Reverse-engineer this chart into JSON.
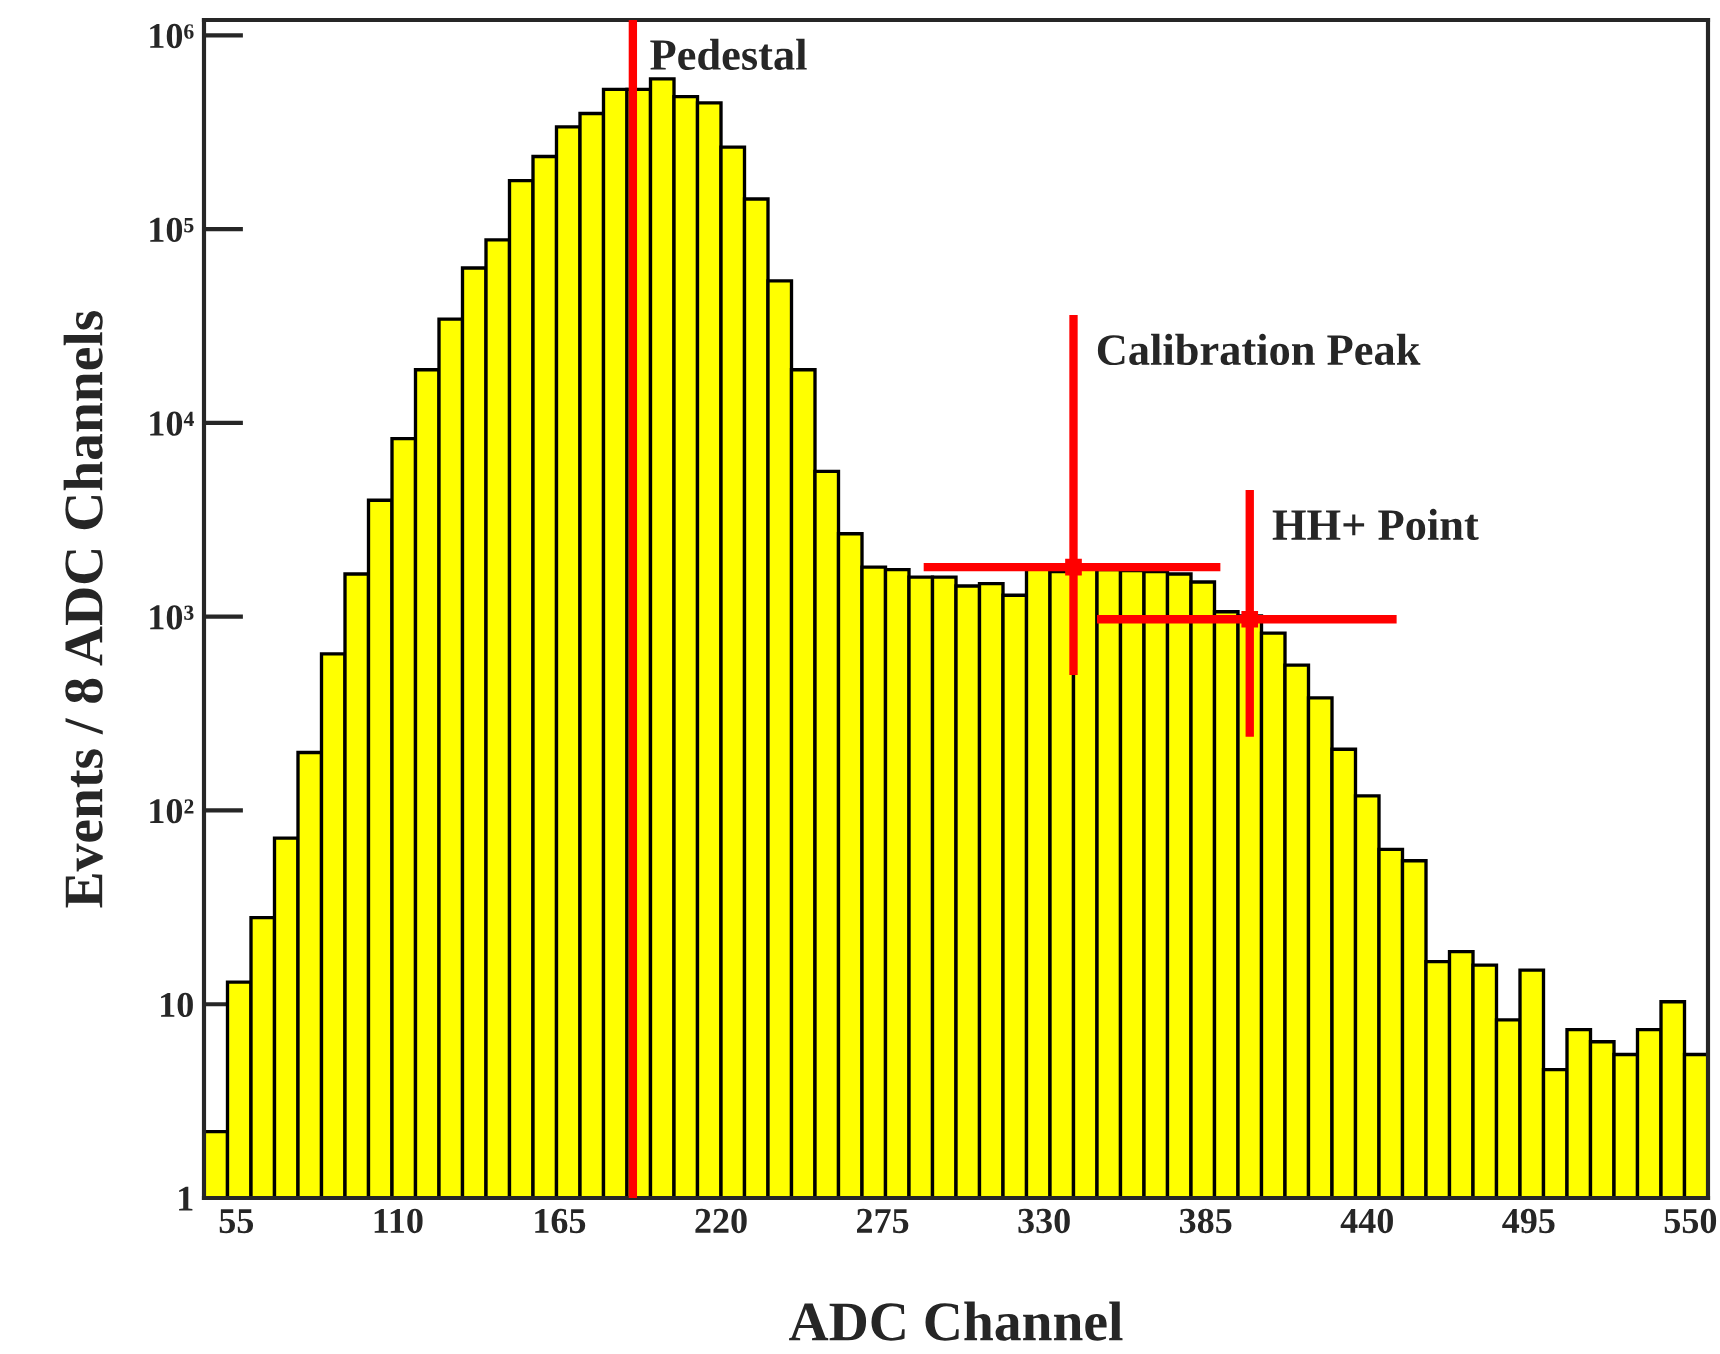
{
  "chart_data": {
    "type": "histogram",
    "xlabel": "ADC Channel",
    "ylabel": "Events / 8 ADC Channels",
    "bins": [
      44,
      52,
      60,
      68,
      76,
      84,
      92,
      100,
      108,
      116,
      124,
      132,
      140,
      148,
      156,
      164,
      172,
      180,
      188,
      196,
      204,
      212,
      220,
      228,
      236,
      244,
      252,
      260,
      268,
      276,
      284,
      292,
      300,
      308,
      316,
      324,
      332,
      340,
      348,
      356,
      364,
      372,
      380,
      388,
      396,
      404,
      412,
      420,
      428,
      436,
      444,
      452,
      460,
      468,
      476,
      484,
      492,
      500,
      508,
      516,
      524,
      532,
      540,
      548,
      556
    ],
    "series": [
      {
        "color": "#ffff00",
        "values": [
          2.2,
          13,
          28,
          72,
          199,
          643,
          1660,
          3990,
          8300,
          18800,
          34300,
          63000,
          88000,
          178000,
          237000,
          337000,
          395000,
          526000,
          526000,
          596000,
          483000,
          448000,
          265000,
          143000,
          54100,
          18800,
          5620,
          2680,
          1800,
          1750,
          1600,
          1600,
          1440,
          1480,
          1290,
          1780,
          1710,
          1760,
          1750,
          1730,
          1710,
          1660,
          1510,
          1060,
          1010,
          823,
          562,
          381,
          207,
          119,
          63,
          55,
          16.6,
          18.7,
          15.9,
          8.3,
          15,
          4.6,
          7.4,
          6.4,
          5.5,
          7.4,
          10.3,
          5.5
        ]
      },
      {
        "type": "scatter",
        "name": "Calibration Peak",
        "color": "#ff0000",
        "marker": "square",
        "x": [
          340
        ],
        "values": [
          1800
        ],
        "errors": [
          [
            500,
            36000
          ]
        ],
        "xerrors": [
          [
            289,
            390
          ]
        ]
      },
      {
        "type": "scatter",
        "name": "HH+ Point",
        "color": "#ff0000",
        "marker": "square",
        "x": [
          400
        ],
        "values": [
          970
        ],
        "errors": [
          [
            240,
            4500
          ]
        ],
        "xerrors": [
          [
            348,
            450
          ]
        ]
      }
    ],
    "ref_lines": [
      {
        "axis": "x",
        "value": 190,
        "label": "Pedestal",
        "color": "#ff0000"
      }
    ],
    "log": "y",
    "xlim": [
      44,
      556
    ],
    "ylim": [
      1,
      1200000
    ],
    "xticks": [
      55,
      110,
      165,
      220,
      275,
      330,
      385,
      440,
      495,
      550
    ],
    "yticks": [
      1,
      10,
      {
        "value": 100,
        "label": "10²"
      },
      {
        "value": 1000,
        "label": "10³"
      },
      {
        "value": 10000,
        "label": "10⁴"
      },
      {
        "value": 100000,
        "label": "10⁵"
      },
      {
        "value": 1000000,
        "label": "10⁶"
      }
    ],
    "grid": false,
    "legend": false
  }
}
